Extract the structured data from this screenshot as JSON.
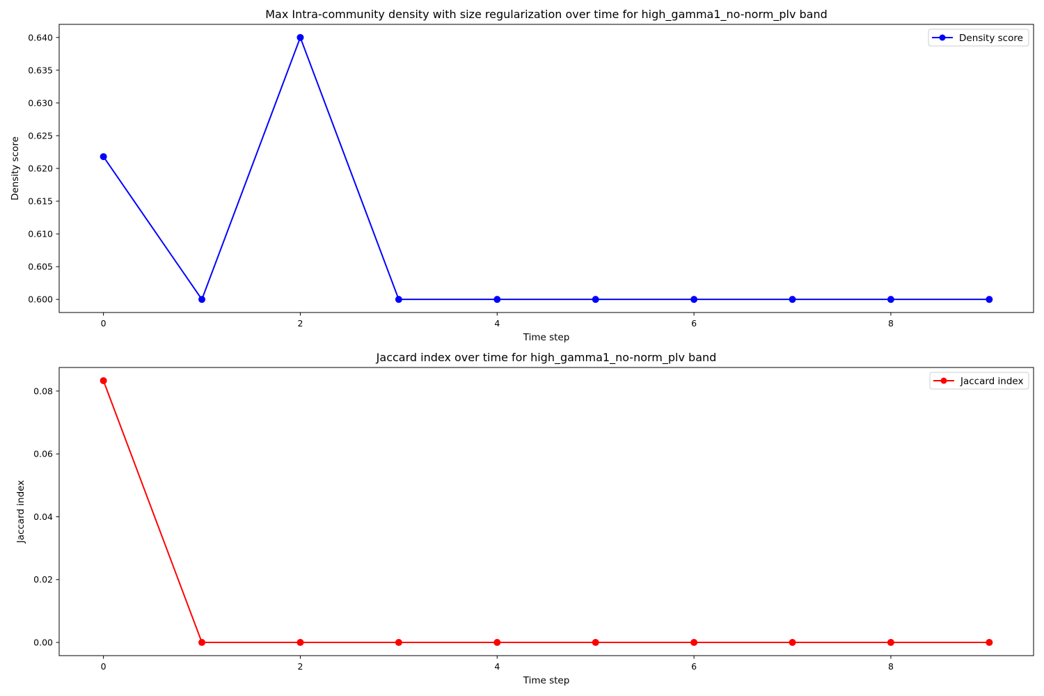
{
  "chart_data": [
    {
      "type": "line",
      "title": "Max Intra-community density with size regularization over time for high_gamma1_no-norm_plv band",
      "xlabel": "Time step",
      "ylabel": "Density score",
      "x": [
        0,
        1,
        2,
        3,
        4,
        5,
        6,
        7,
        8,
        9
      ],
      "series": [
        {
          "name": "Density score",
          "color": "#0000ff",
          "marker": "circle",
          "values": [
            0.6218,
            0.6,
            0.64,
            0.6,
            0.6,
            0.6,
            0.6,
            0.6,
            0.6,
            0.6
          ]
        }
      ],
      "xlim": [
        -0.45,
        9.45
      ],
      "ylim": [
        0.598,
        0.642
      ],
      "xticks": [
        0,
        2,
        4,
        6,
        8
      ],
      "xtick_labels": [
        "0",
        "2",
        "4",
        "6",
        "8"
      ],
      "yticks": [
        0.6,
        0.605,
        0.61,
        0.615,
        0.62,
        0.625,
        0.63,
        0.635,
        0.64
      ],
      "ytick_labels": [
        "0.600",
        "0.605",
        "0.610",
        "0.615",
        "0.620",
        "0.625",
        "0.630",
        "0.635",
        "0.640"
      ],
      "legend_position": "top-right",
      "grid": false
    },
    {
      "type": "line",
      "title": "Jaccard index over time for high_gamma1_no-norm_plv band",
      "xlabel": "Time step",
      "ylabel": "Jaccard index",
      "x": [
        0,
        1,
        2,
        3,
        4,
        5,
        6,
        7,
        8,
        9
      ],
      "series": [
        {
          "name": "Jaccard index",
          "color": "#ff0000",
          "marker": "circle",
          "values": [
            0.0833,
            0,
            0,
            0,
            0,
            0,
            0,
            0,
            0,
            0
          ]
        }
      ],
      "xlim": [
        -0.45,
        9.45
      ],
      "ylim": [
        -0.0042,
        0.0875
      ],
      "xticks": [
        0,
        2,
        4,
        6,
        8
      ],
      "xtick_labels": [
        "0",
        "2",
        "4",
        "6",
        "8"
      ],
      "yticks": [
        0,
        0.02,
        0.04,
        0.06,
        0.08
      ],
      "ytick_labels": [
        "0.00",
        "0.02",
        "0.04",
        "0.06",
        "0.08"
      ],
      "legend_position": "top-right",
      "grid": false
    }
  ]
}
